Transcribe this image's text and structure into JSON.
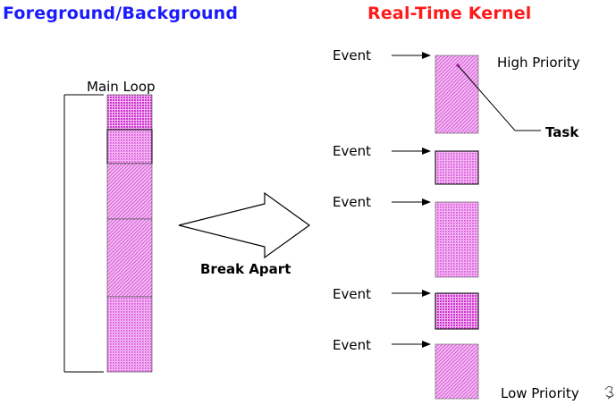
{
  "titles": {
    "left": "Foreground/Background",
    "right": "Real-Time Kernel"
  },
  "labels": {
    "main_loop": "Main Loop",
    "break_apart": "Break Apart",
    "event": "Event",
    "high_priority": "High Priority",
    "low_priority": "Low Priority",
    "task": "Task"
  },
  "colors": {
    "left_title": "#1a1aff",
    "right_title": "#ff1a1a",
    "block_fill": "#e060e0",
    "block_fill_light": "#f0a8f0"
  }
}
